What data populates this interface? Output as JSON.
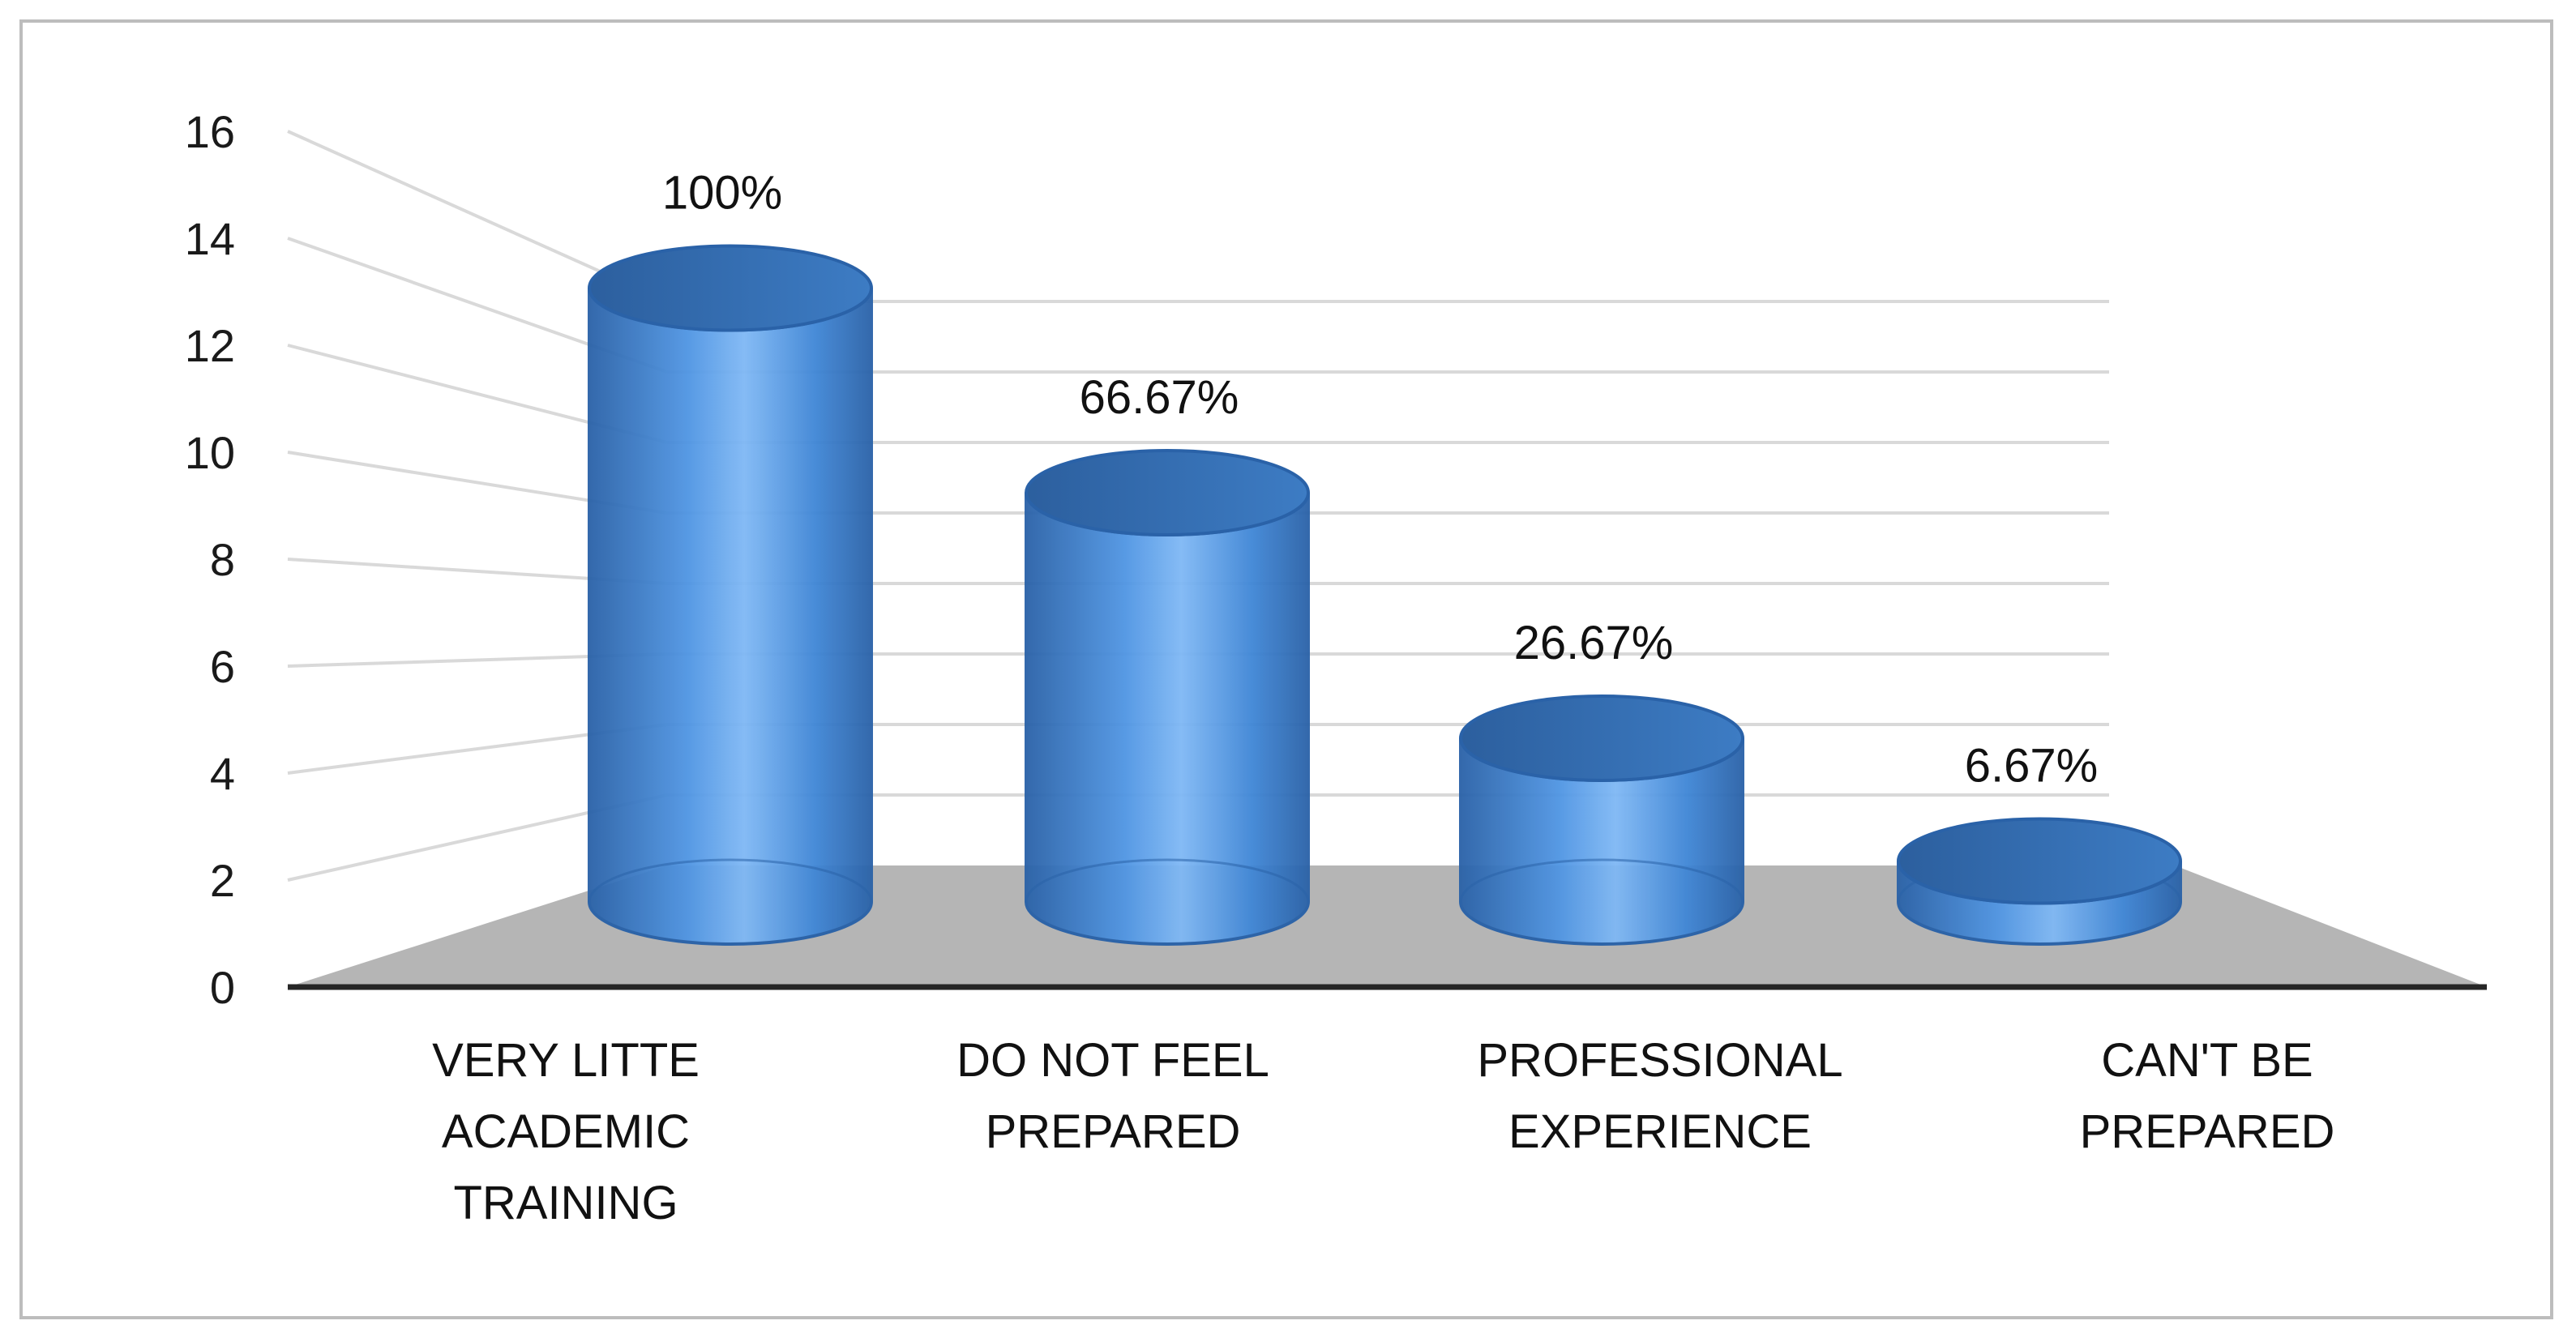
{
  "chart_data": {
    "type": "bar",
    "style": "3d-cylinder",
    "categories": [
      [
        "VERY LITTE",
        "ACADEMIC",
        "TRAINING"
      ],
      [
        "DO NOT FEEL",
        "PREPARED"
      ],
      [
        "PROFESSIONAL",
        "EXPERIENCE"
      ],
      [
        "CAN'T BE",
        "PREPARED"
      ]
    ],
    "values": [
      15,
      10,
      4,
      1
    ],
    "data_labels": [
      "100%",
      "66.67%",
      "26.67%",
      "6.67%"
    ],
    "title": "",
    "xlabel": "",
    "ylabel": "",
    "ylim": [
      0,
      16
    ],
    "yticks": [
      "0",
      "2",
      "4",
      "6",
      "8",
      "10",
      "12",
      "14",
      "16"
    ],
    "grid": true,
    "legend": "none",
    "colors": {
      "bar": "#3f86d6",
      "bar_light": "#7fb8f5",
      "bar_dark": "#2a62a8",
      "floor": "#b5b5b5",
      "grid": "#d9d9d9",
      "axis": "#262626"
    }
  }
}
